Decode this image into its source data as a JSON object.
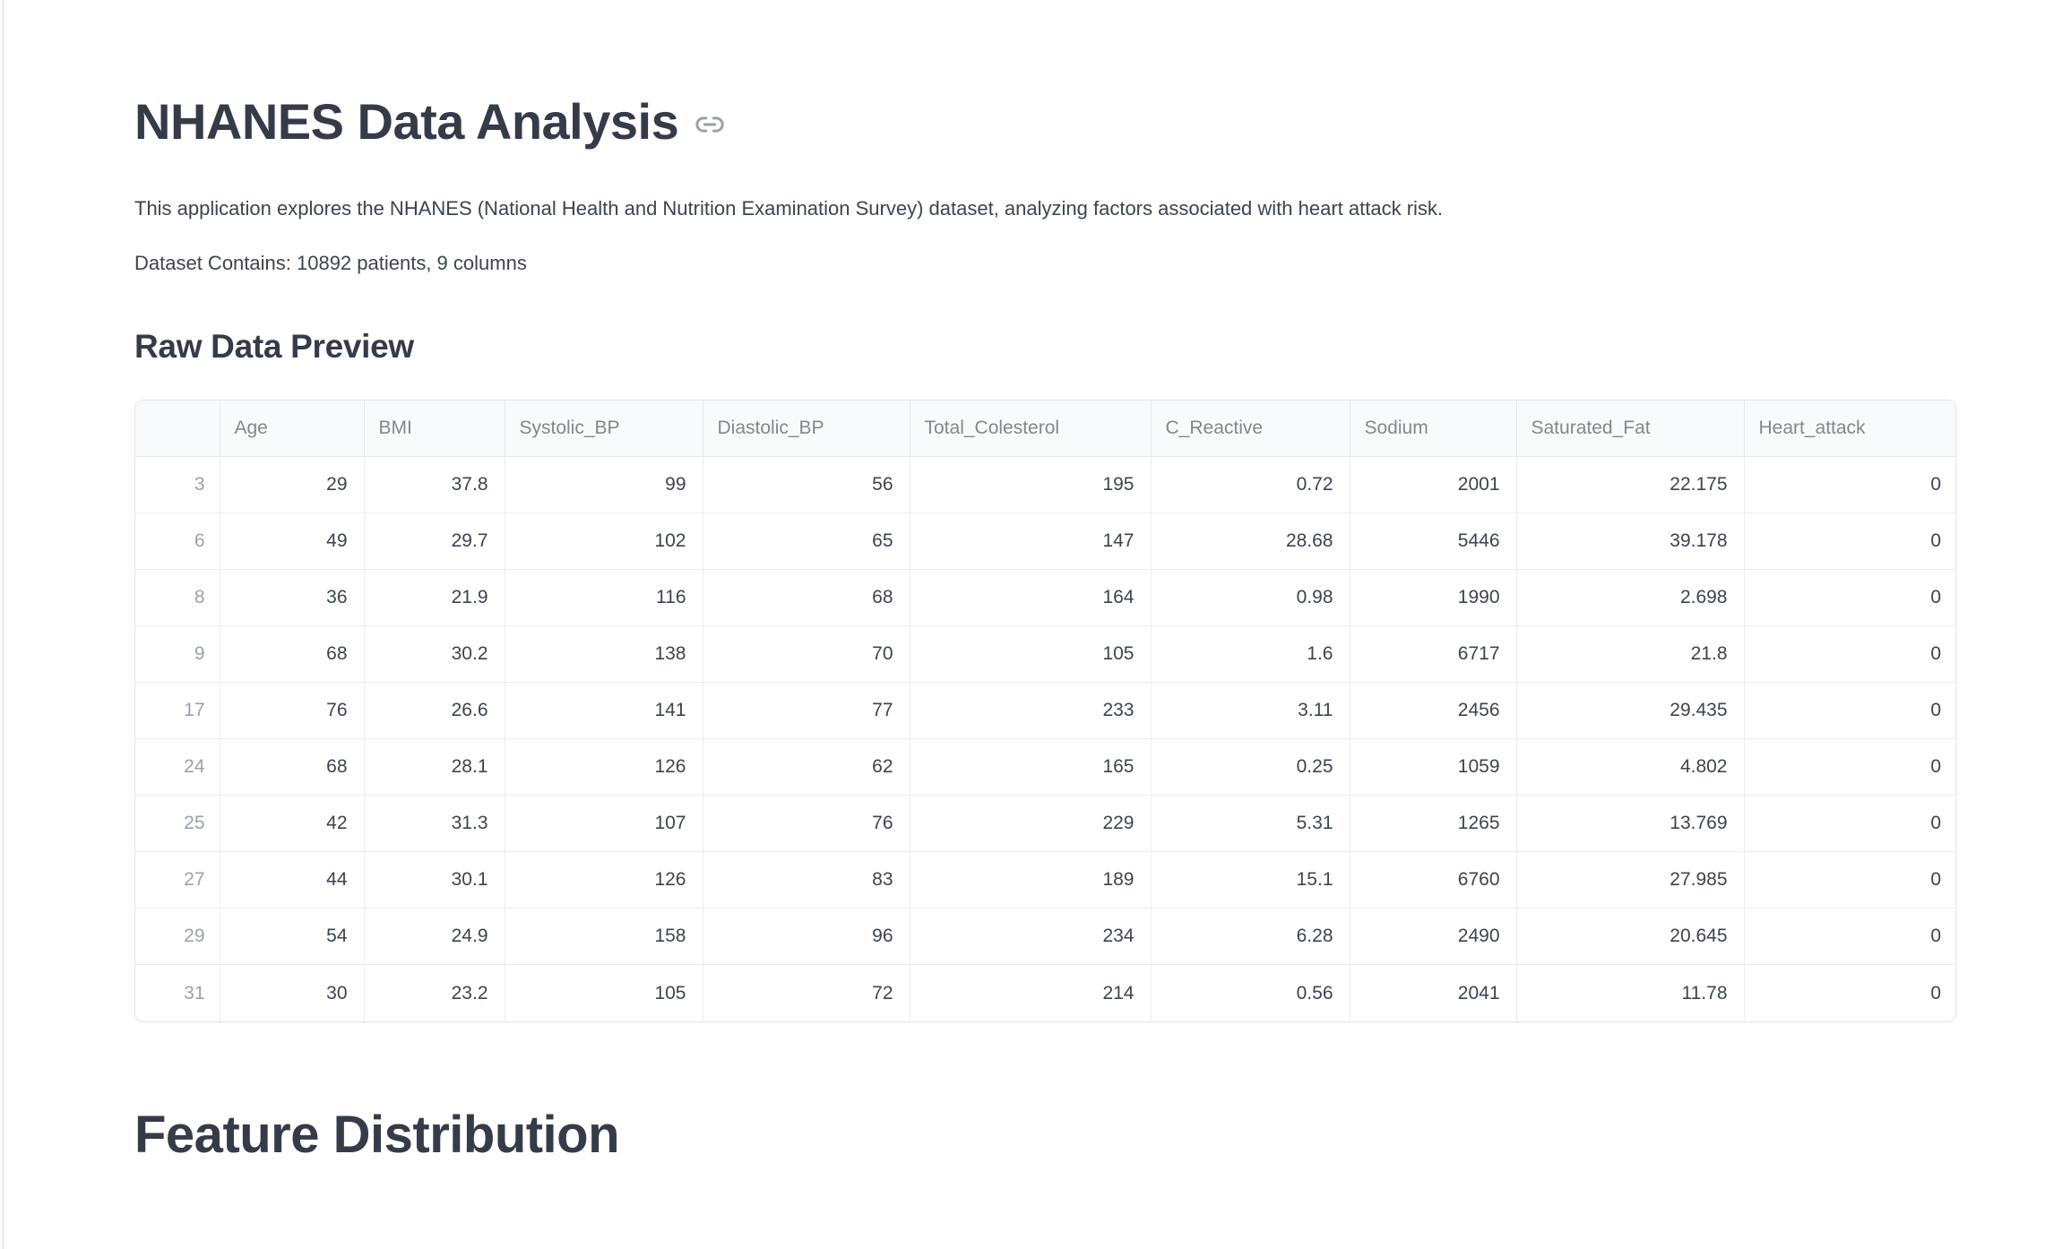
{
  "page": {
    "title": "NHANES Data Analysis",
    "description": "This application explores the NHANES (National Health and Nutrition Examination Survey) dataset, analyzing factors associated with heart attack risk.",
    "dataset_summary": "Dataset Contains: 10892 patients, 9 columns",
    "section_raw_data": "Raw Data Preview",
    "section_feature_distribution": "Feature Distribution"
  },
  "icons": {
    "heading_anchor": "link-icon"
  },
  "colors": {
    "heading_text": "#353b49",
    "body_text": "#3d4350",
    "table_header_bg": "#f9fafb",
    "table_header_text": "#83878f",
    "table_index_text": "#9ba1ab",
    "table_border": "#e7e8ea",
    "anchor_icon": "#9aa0a8"
  },
  "table": {
    "columns": [
      "",
      "Age",
      "BMI",
      "Systolic_BP",
      "Diastolic_BP",
      "Total_Colesterol",
      "C_Reactive",
      "Sodium",
      "Saturated_Fat",
      "Heart_attack"
    ],
    "rows": [
      [
        "3",
        "29",
        "37.8",
        "99",
        "56",
        "195",
        "0.72",
        "2001",
        "22.175",
        "0"
      ],
      [
        "6",
        "49",
        "29.7",
        "102",
        "65",
        "147",
        "28.68",
        "5446",
        "39.178",
        "0"
      ],
      [
        "8",
        "36",
        "21.9",
        "116",
        "68",
        "164",
        "0.98",
        "1990",
        "2.698",
        "0"
      ],
      [
        "9",
        "68",
        "30.2",
        "138",
        "70",
        "105",
        "1.6",
        "6717",
        "21.8",
        "0"
      ],
      [
        "17",
        "76",
        "26.6",
        "141",
        "77",
        "233",
        "3.11",
        "2456",
        "29.435",
        "0"
      ],
      [
        "24",
        "68",
        "28.1",
        "126",
        "62",
        "165",
        "0.25",
        "1059",
        "4.802",
        "0"
      ],
      [
        "25",
        "42",
        "31.3",
        "107",
        "76",
        "229",
        "5.31",
        "1265",
        "13.769",
        "0"
      ],
      [
        "27",
        "44",
        "30.1",
        "126",
        "83",
        "189",
        "15.1",
        "6760",
        "27.985",
        "0"
      ],
      [
        "29",
        "54",
        "24.9",
        "158",
        "96",
        "234",
        "6.28",
        "2490",
        "20.645",
        "0"
      ],
      [
        "31",
        "30",
        "23.2",
        "105",
        "72",
        "214",
        "0.56",
        "2041",
        "11.78",
        "0"
      ]
    ]
  }
}
